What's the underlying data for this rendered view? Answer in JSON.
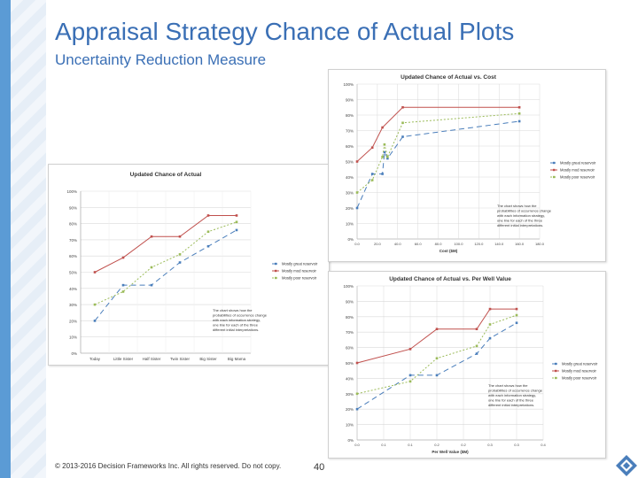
{
  "page": {
    "title": "Appraisal Strategy Chance of Actual Plots",
    "subtitle": "Uncertainty Reduction Measure",
    "footer": "© 2013-2016 Decision Frameworks Inc. All rights reserved. Do not copy.",
    "page_number": "40",
    "accent_color": "#3a6fb5"
  },
  "chart_data": [
    {
      "id": "chart-main",
      "type": "line",
      "title": "Updated Chance of Actual",
      "xlabel": "",
      "ylabel": "",
      "categories": [
        "Today",
        "Little Sister",
        "Half Sister",
        "Twin Sister",
        "Big Sister",
        "Big Mama"
      ],
      "y_ticks": [
        "0%",
        "10%",
        "20%",
        "30%",
        "40%",
        "50%",
        "60%",
        "70%",
        "80%",
        "90%",
        "100%"
      ],
      "ylim": [
        0,
        100
      ],
      "grid": true,
      "legend": "right",
      "annotation": [
        "The chart shows how the",
        "probabilities of occurrence change",
        "with each information strategy,",
        "one line for each of the three",
        "different initial interpretations."
      ],
      "series": [
        {
          "name": "Mostly great reservoir",
          "color": "#4a7ebb",
          "dash": "6,4",
          "values": [
            20,
            42,
            42,
            56,
            66,
            76
          ]
        },
        {
          "name": "Mostly mod reservoir",
          "color": "#c0504d",
          "dash": "",
          "values": [
            50,
            59,
            72,
            72,
            85,
            85
          ]
        },
        {
          "name": "Mostly poor reservoir",
          "color": "#9bbb59",
          "dash": "2,2",
          "values": [
            30,
            38,
            53,
            61,
            75,
            81
          ]
        }
      ]
    },
    {
      "id": "chart-cost",
      "type": "line",
      "title": "Updated Chance of Actual vs. Cost",
      "xlabel": "Cost ($M)",
      "ylabel": "",
      "x_ticks": [
        "0.0",
        "20.0",
        "40.0",
        "60.0",
        "80.0",
        "100.0",
        "120.0",
        "140.0",
        "160.0",
        "180.0"
      ],
      "xlim": [
        0,
        180
      ],
      "y_ticks": [
        "0%",
        "10%",
        "20%",
        "30%",
        "40%",
        "50%",
        "60%",
        "70%",
        "80%",
        "90%",
        "100%"
      ],
      "ylim": [
        0,
        100
      ],
      "grid": true,
      "legend": "right",
      "annotation": [
        "The chart shows how the",
        "probabilities of occurrence change",
        "with each information strategy,",
        "one line for each of the three",
        "different initial interpretations."
      ],
      "series": [
        {
          "name": "Mostly great reservoir",
          "color": "#4a7ebb",
          "dash": "6,4",
          "x": [
            0,
            15,
            25,
            27,
            30,
            45,
            160
          ],
          "y": [
            20,
            42,
            42,
            56,
            52,
            66,
            76
          ]
        },
        {
          "name": "Mostly mod reservoir",
          "color": "#c0504d",
          "dash": "",
          "x": [
            0,
            15,
            25,
            45,
            160
          ],
          "y": [
            50,
            59,
            72,
            85,
            85
          ]
        },
        {
          "name": "Mostly poor reservoir",
          "color": "#9bbb59",
          "dash": "2,2",
          "x": [
            0,
            15,
            25,
            27,
            30,
            45,
            160
          ],
          "y": [
            30,
            38,
            53,
            61,
            53,
            75,
            81
          ]
        }
      ]
    },
    {
      "id": "chart-perwell",
      "type": "line",
      "title": "Updated Chance of Actual vs. Per Well Value",
      "xlabel": "Per Well Value ($M)",
      "ylabel": "",
      "x_ticks": [
        "0.0",
        "0.1",
        "0.1",
        "0.2",
        "0.2",
        "0.3",
        "0.3",
        "0.4"
      ],
      "xlim": [
        0,
        0.35
      ],
      "y_ticks": [
        "0%",
        "10%",
        "20%",
        "30%",
        "40%",
        "50%",
        "60%",
        "70%",
        "80%",
        "90%",
        "100%"
      ],
      "ylim": [
        0,
        100
      ],
      "grid": true,
      "legend": "right",
      "annotation": [
        "The chart shows how the",
        "probabilities of occurrence change",
        "with each information strategy,",
        "one line for each of the three",
        "different initial interpretations."
      ],
      "series": [
        {
          "name": "Mostly great reservoir",
          "color": "#4a7ebb",
          "dash": "6,4",
          "x": [
            0,
            0.1,
            0.15,
            0.225,
            0.25,
            0.3
          ],
          "y": [
            20,
            42,
            42,
            56,
            66,
            76
          ]
        },
        {
          "name": "Mostly mod reservoir",
          "color": "#c0504d",
          "dash": "",
          "x": [
            0,
            0.1,
            0.15,
            0.225,
            0.25,
            0.3
          ],
          "y": [
            50,
            59,
            72,
            72,
            85,
            85
          ]
        },
        {
          "name": "Mostly poor reservoir",
          "color": "#9bbb59",
          "dash": "2,2",
          "x": [
            0,
            0.1,
            0.15,
            0.225,
            0.25,
            0.3
          ],
          "y": [
            30,
            38,
            53,
            61,
            75,
            81
          ]
        }
      ]
    }
  ]
}
